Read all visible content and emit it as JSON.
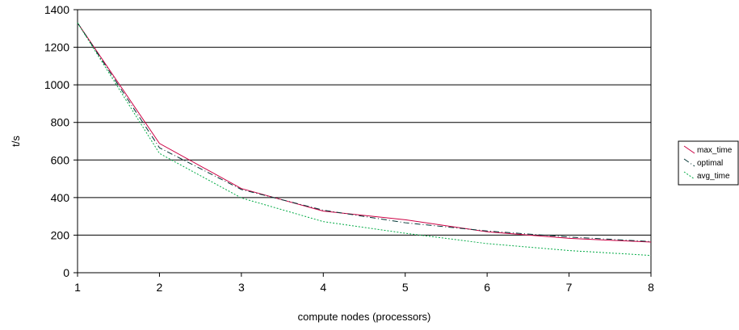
{
  "chart_data": {
    "type": "line",
    "title": "",
    "xlabel": "compute nodes (processors)",
    "ylabel": "t/s",
    "x": [
      1,
      2,
      3,
      4,
      5,
      6,
      7,
      8
    ],
    "xlim": [
      1,
      8
    ],
    "ylim": [
      0,
      1400
    ],
    "x_ticks": [
      "1",
      "2",
      "3",
      "4",
      "5",
      "6",
      "7",
      "8"
    ],
    "y_ticks": [
      "0",
      "200",
      "400",
      "600",
      "800",
      "1000",
      "1200",
      "1400"
    ],
    "grid": "horizontal",
    "legend_position": "right",
    "series": [
      {
        "name": "max_time",
        "color": "#cc0044",
        "style": "solid",
        "values": [
          1330,
          688,
          448,
          328,
          282,
          218,
          183,
          163
        ]
      },
      {
        "name": "optimal",
        "color": "#003333",
        "style": "dash-dot",
        "values": [
          1330,
          665,
          443,
          333,
          266,
          222,
          190,
          166
        ]
      },
      {
        "name": "avg_time",
        "color": "#00aa44",
        "style": "dotted",
        "values": [
          1330,
          635,
          398,
          272,
          210,
          155,
          118,
          92
        ]
      }
    ]
  }
}
